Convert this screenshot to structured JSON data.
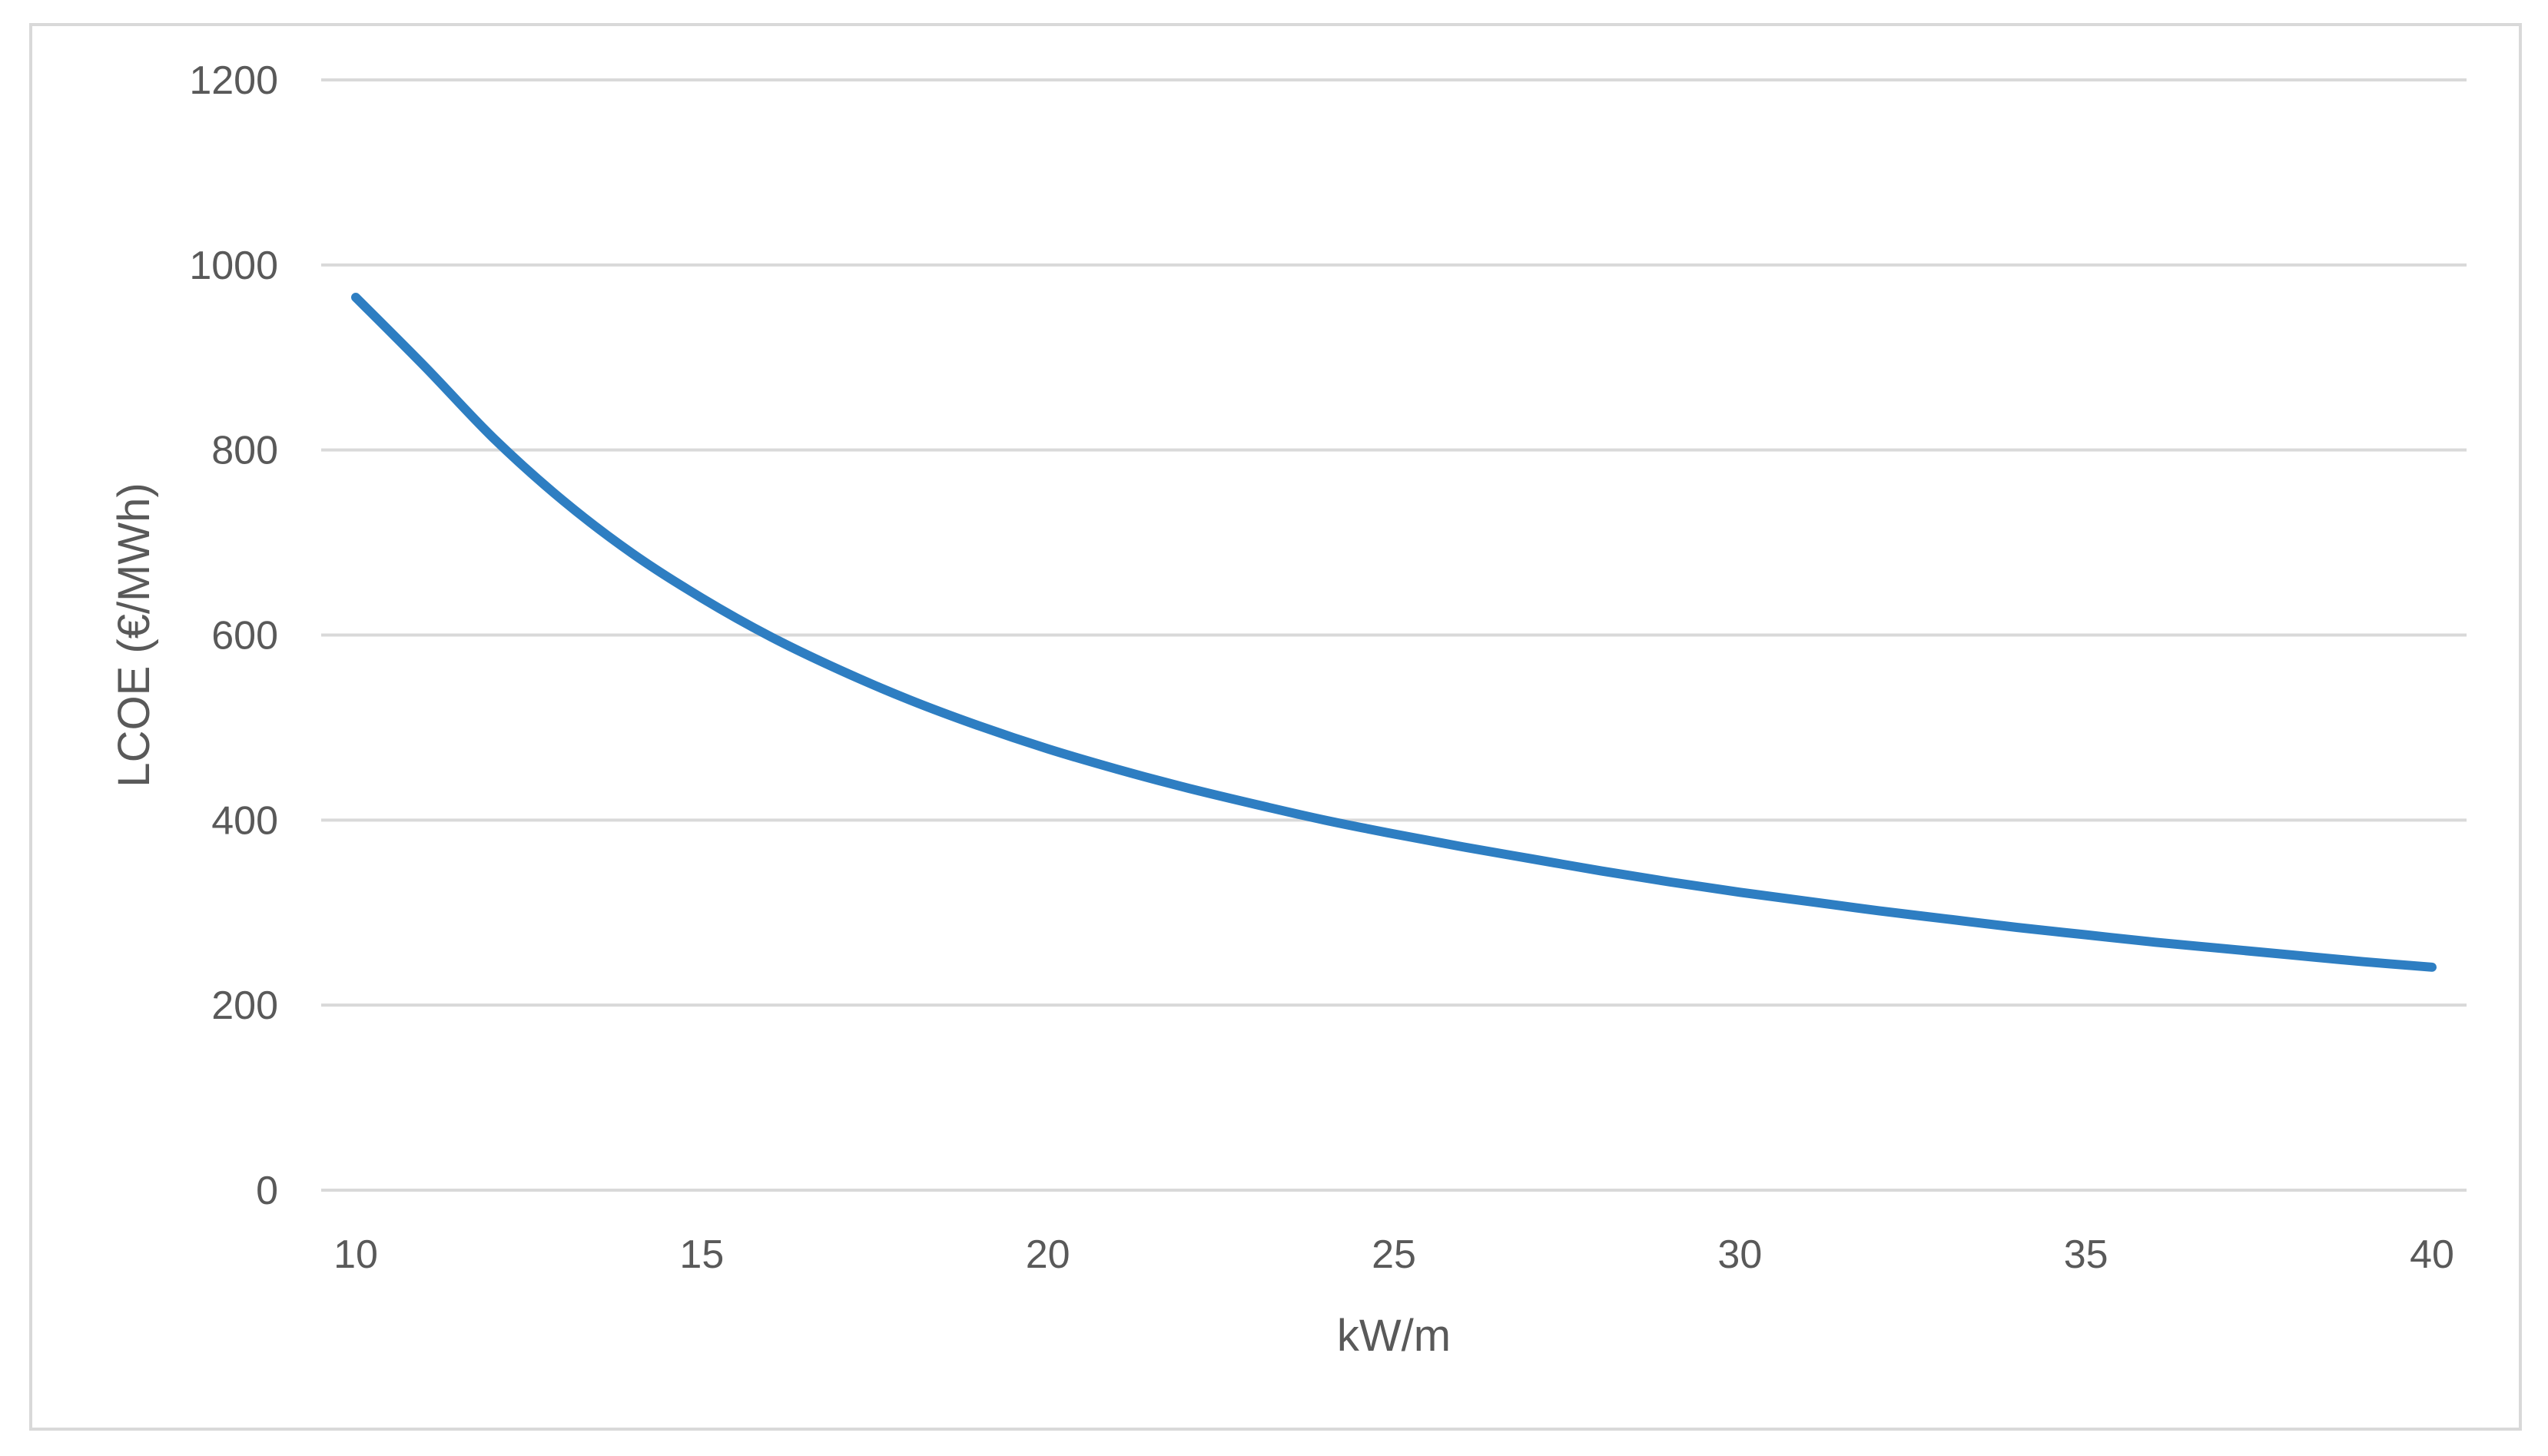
{
  "chart_data": {
    "type": "line",
    "title": "",
    "xlabel": "kW/m",
    "ylabel": "LCOE (€/MWh)",
    "xlim": [
      10,
      40
    ],
    "ylim": [
      0,
      1200
    ],
    "x_ticks": [
      "10",
      "15",
      "20",
      "25",
      "30",
      "35",
      "40"
    ],
    "y_ticks": [
      "0",
      "200",
      "400",
      "600",
      "800",
      "1000",
      "1200"
    ],
    "grid": "horizontal",
    "legend": "none",
    "series": [
      {
        "color": "#2E7EC2",
        "x": [
          10,
          11,
          12,
          13,
          14,
          15,
          16,
          17,
          18,
          19,
          20,
          21,
          22,
          23,
          24,
          25,
          26,
          27,
          28,
          29,
          30,
          31,
          32,
          33,
          34,
          35,
          36,
          37,
          38,
          39,
          40
        ],
        "y": [
          965,
          890,
          812,
          745,
          688,
          640,
          598,
          562,
          530,
          502,
          477,
          455,
          435,
          417,
          400,
          385,
          371,
          358,
          345,
          333,
          322,
          312,
          302,
          293,
          284,
          276,
          268,
          261,
          254,
          247,
          241
        ]
      }
    ]
  }
}
